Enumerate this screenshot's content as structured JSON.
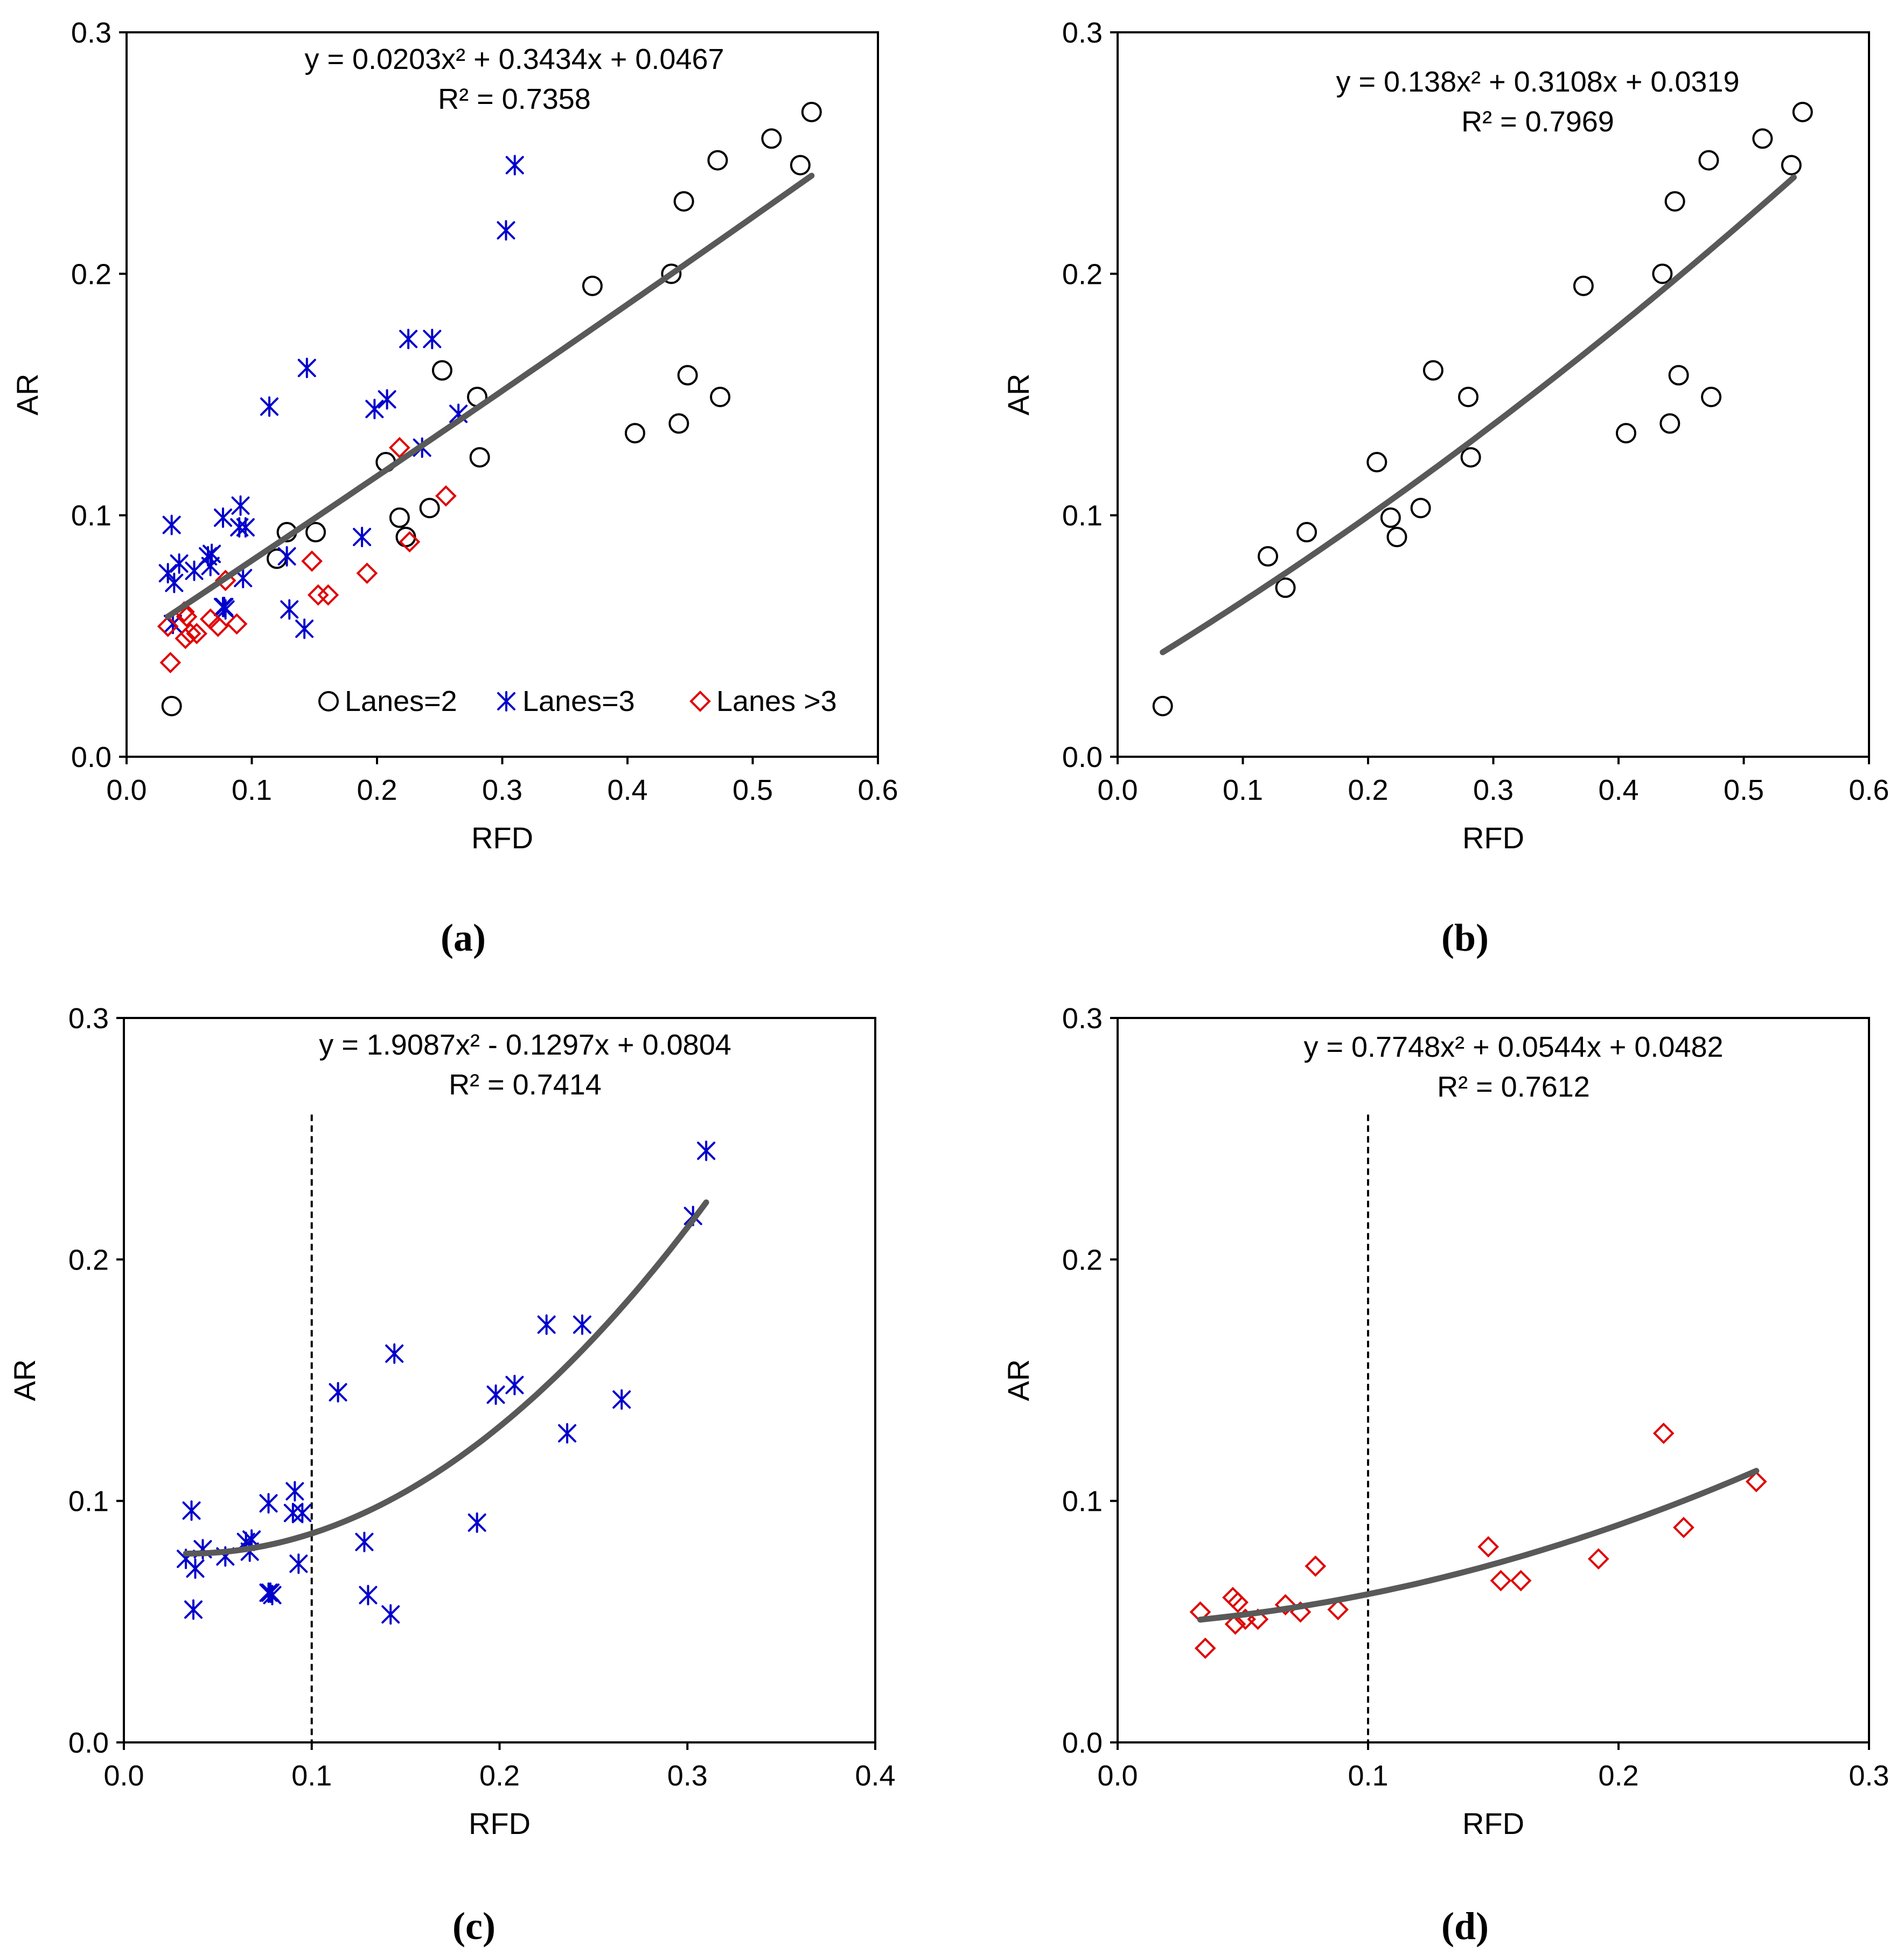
{
  "figure_labels": [
    "(a)",
    "(b)",
    "(c)",
    "(d)"
  ],
  "colors": {
    "lanes2": "#000000",
    "lanes3": "#0000cc",
    "lanes_gt3": "#e00000",
    "fit": "#595959",
    "axis": "#000000"
  },
  "chart_data": [
    {
      "id": "a",
      "type": "scatter",
      "panel_label": "(a)",
      "xlabel": "RFD",
      "ylabel": "AR",
      "xlim": [
        0,
        0.6
      ],
      "ylim": [
        0,
        0.3
      ],
      "xticks": [
        0,
        0.1,
        0.2,
        0.3,
        0.4,
        0.5,
        0.6
      ],
      "xtick_labels": [
        "0.0",
        "0.1",
        "0.2",
        "0.3",
        "0.4",
        "0.5",
        "0.6"
      ],
      "yticks": [
        0,
        0.1,
        0.2,
        0.3
      ],
      "ytick_labels": [
        "0.0",
        "0.1",
        "0.2",
        "0.3"
      ],
      "equation": "y = 0.0203x² + 0.3434x + 0.0467",
      "r2": "R² = 0.7358",
      "fit": {
        "a": 0.0203,
        "b": 0.3434,
        "c": 0.0467,
        "x_range": [
          0.033,
          0.547
        ]
      },
      "vline": null,
      "legend": [
        {
          "label": "Lanes=2",
          "marker": "circle",
          "color": "#000000"
        },
        {
          "label": "Lanes=3",
          "marker": "asterisk",
          "color": "#0000cc"
        },
        {
          "label": "Lanes >3",
          "marker": "diamond",
          "color": "#e00000"
        }
      ],
      "series": [
        {
          "name": "Lanes=2",
          "marker": "circle",
          "color": "#000000",
          "x": [
            0.036,
            0.12,
            0.128,
            0.151,
            0.207,
            0.218,
            0.223,
            0.242,
            0.252,
            0.28,
            0.282,
            0.372,
            0.406,
            0.435,
            0.441,
            0.445,
            0.448,
            0.472,
            0.474,
            0.515,
            0.538,
            0.547
          ],
          "y": [
            0.021,
            0.082,
            0.093,
            0.093,
            0.122,
            0.099,
            0.091,
            0.103,
            0.16,
            0.149,
            0.124,
            0.195,
            0.134,
            0.2,
            0.138,
            0.23,
            0.158,
            0.247,
            0.149,
            0.256,
            0.245,
            0.267
          ]
        },
        {
          "name": "Lanes=3",
          "marker": "asterisk",
          "color": "#0000cc",
          "x": [
            0.033,
            0.036,
            0.037,
            0.038,
            0.042,
            0.054,
            0.065,
            0.067,
            0.068,
            0.077,
            0.077,
            0.078,
            0.079,
            0.09,
            0.091,
            0.093,
            0.095,
            0.114,
            0.128,
            0.13,
            0.142,
            0.144,
            0.188,
            0.198,
            0.208,
            0.225,
            0.236,
            0.244,
            0.265,
            0.303,
            0.31
          ],
          "y": [
            0.076,
            0.096,
            0.055,
            0.072,
            0.08,
            0.077,
            0.083,
            0.079,
            0.084,
            0.099,
            0.062,
            0.062,
            0.061,
            0.095,
            0.104,
            0.074,
            0.095,
            0.145,
            0.083,
            0.061,
            0.053,
            0.161,
            0.091,
            0.144,
            0.148,
            0.173,
            0.128,
            0.173,
            0.142,
            0.218,
            0.245
          ]
        },
        {
          "name": "Lanes >3",
          "marker": "diamond",
          "color": "#e00000",
          "x": [
            0.033,
            0.035,
            0.046,
            0.047,
            0.048,
            0.051,
            0.056,
            0.067,
            0.073,
            0.079,
            0.088,
            0.148,
            0.153,
            0.161,
            0.192,
            0.218,
            0.226,
            0.255
          ],
          "y": [
            0.054,
            0.039,
            0.06,
            0.049,
            0.058,
            0.051,
            0.051,
            0.057,
            0.054,
            0.073,
            0.055,
            0.081,
            0.067,
            0.067,
            0.076,
            0.128,
            0.089,
            0.108
          ]
        }
      ]
    },
    {
      "id": "b",
      "type": "scatter",
      "panel_label": "(b)",
      "xlabel": "RFD",
      "ylabel": "AR",
      "xlim": [
        0,
        0.6
      ],
      "ylim": [
        0,
        0.3
      ],
      "xticks": [
        0,
        0.1,
        0.2,
        0.3,
        0.4,
        0.5,
        0.6
      ],
      "xtick_labels": [
        "0.0",
        "0.1",
        "0.2",
        "0.3",
        "0.4",
        "0.5",
        "0.6"
      ],
      "yticks": [
        0,
        0.1,
        0.2,
        0.3
      ],
      "ytick_labels": [
        "0.0",
        "0.1",
        "0.2",
        "0.3"
      ],
      "equation": "y = 0.138x² + 0.3108x + 0.0319",
      "r2": "R² = 0.7969",
      "fit": {
        "a": 0.138,
        "b": 0.3108,
        "c": 0.0319,
        "x_range": [
          0.036,
          0.54
        ]
      },
      "vline": null,
      "legend": [],
      "series": [
        {
          "name": "Lanes=2",
          "marker": "circle",
          "color": "#000000",
          "x": [
            0.036,
            0.12,
            0.134,
            0.151,
            0.207,
            0.218,
            0.223,
            0.242,
            0.252,
            0.28,
            0.282,
            0.372,
            0.406,
            0.435,
            0.441,
            0.445,
            0.448,
            0.472,
            0.474,
            0.515,
            0.538,
            0.547
          ],
          "y": [
            0.021,
            0.083,
            0.07,
            0.093,
            0.122,
            0.099,
            0.091,
            0.103,
            0.16,
            0.149,
            0.124,
            0.195,
            0.134,
            0.2,
            0.138,
            0.23,
            0.158,
            0.247,
            0.149,
            0.256,
            0.245,
            0.267
          ]
        }
      ]
    },
    {
      "id": "c",
      "type": "scatter",
      "panel_label": "(c)",
      "xlabel": "RFD",
      "ylabel": "AR",
      "xlim": [
        0,
        0.4
      ],
      "ylim": [
        0,
        0.3
      ],
      "xticks": [
        0,
        0.1,
        0.2,
        0.3,
        0.4
      ],
      "xtick_labels": [
        "0.0",
        "0.1",
        "0.2",
        "0.3",
        "0.4"
      ],
      "yticks": [
        0,
        0.1,
        0.2,
        0.3
      ],
      "ytick_labels": [
        "0.0",
        "0.1",
        "0.2",
        "0.3"
      ],
      "equation": "y = 1.9087x² - 0.1297x + 0.0804",
      "r2": "R² = 0.7414",
      "fit": {
        "a": 1.9087,
        "b": -0.1297,
        "c": 0.0804,
        "x_range": [
          0.033,
          0.31
        ]
      },
      "vline": 0.1,
      "legend": [],
      "series": [
        {
          "name": "Lanes=3",
          "marker": "asterisk",
          "color": "#0000cc",
          "x": [
            0.033,
            0.036,
            0.037,
            0.038,
            0.042,
            0.054,
            0.065,
            0.067,
            0.068,
            0.077,
            0.077,
            0.078,
            0.079,
            0.09,
            0.091,
            0.093,
            0.095,
            0.114,
            0.128,
            0.13,
            0.142,
            0.144,
            0.188,
            0.198,
            0.208,
            0.225,
            0.236,
            0.244,
            0.265,
            0.303,
            0.31
          ],
          "y": [
            0.076,
            0.096,
            0.055,
            0.072,
            0.08,
            0.077,
            0.083,
            0.079,
            0.084,
            0.099,
            0.062,
            0.062,
            0.061,
            0.095,
            0.104,
            0.074,
            0.095,
            0.145,
            0.083,
            0.061,
            0.053,
            0.161,
            0.091,
            0.144,
            0.148,
            0.173,
            0.128,
            0.173,
            0.142,
            0.218,
            0.245
          ]
        }
      ]
    },
    {
      "id": "d",
      "type": "scatter",
      "panel_label": "(d)",
      "xlabel": "RFD",
      "ylabel": "AR",
      "xlim": [
        0,
        0.3
      ],
      "ylim": [
        0,
        0.3
      ],
      "xticks": [
        0,
        0.1,
        0.2,
        0.3
      ],
      "xtick_labels": [
        "0.0",
        "0.1",
        "0.2",
        "0.3"
      ],
      "yticks": [
        0,
        0.1,
        0.2,
        0.3
      ],
      "ytick_labels": [
        "0.0",
        "0.1",
        "0.2",
        "0.3"
      ],
      "equation": "y = 0.7748x² + 0.0544x + 0.0482",
      "r2": "R² = 0.7612",
      "fit": {
        "a": 0.7748,
        "b": 0.0544,
        "c": 0.0482,
        "x_range": [
          0.033,
          0.255
        ]
      },
      "vline": 0.1,
      "legend": [],
      "series": [
        {
          "name": "Lanes >3",
          "marker": "diamond",
          "color": "#e00000",
          "x": [
            0.033,
            0.035,
            0.046,
            0.047,
            0.048,
            0.051,
            0.056,
            0.067,
            0.073,
            0.079,
            0.088,
            0.148,
            0.153,
            0.161,
            0.192,
            0.218,
            0.226,
            0.255
          ],
          "y": [
            0.054,
            0.039,
            0.06,
            0.049,
            0.058,
            0.051,
            0.051,
            0.057,
            0.054,
            0.073,
            0.055,
            0.081,
            0.067,
            0.067,
            0.076,
            0.128,
            0.089,
            0.108
          ]
        }
      ]
    }
  ]
}
